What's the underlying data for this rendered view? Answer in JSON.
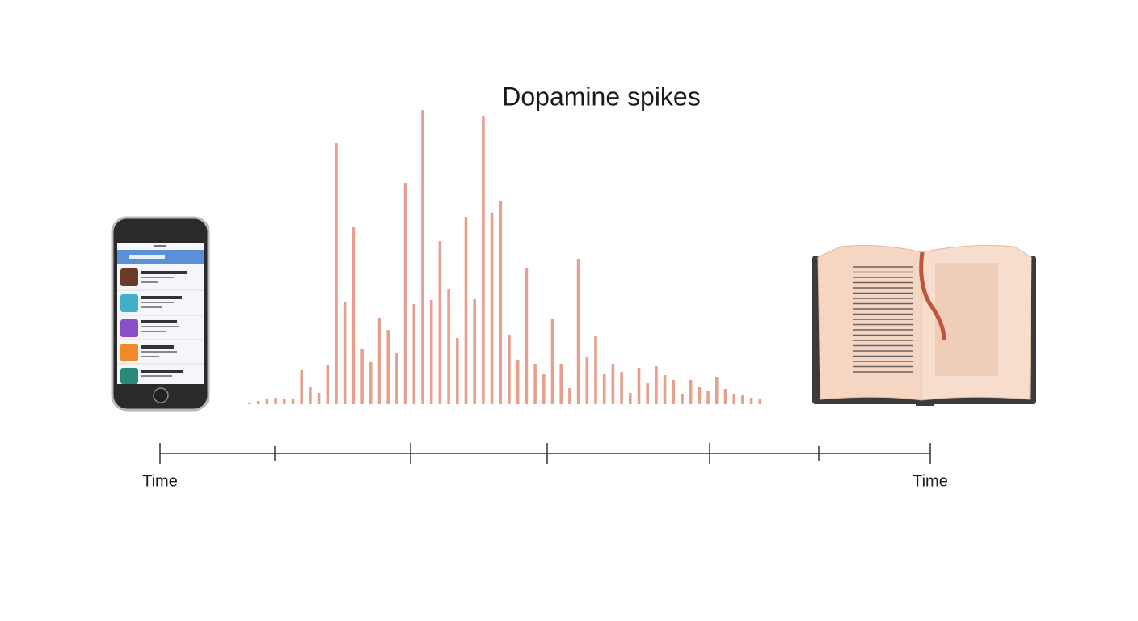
{
  "chart_data": {
    "type": "bar",
    "title": "Dopamine spikes",
    "values": [
      2,
      4,
      7,
      8,
      7,
      7,
      43,
      22,
      14,
      48,
      323,
      126,
      219,
      68,
      52,
      107,
      92,
      63,
      274,
      124,
      364,
      129,
      202,
      142,
      82,
      232,
      130,
      356,
      237,
      251,
      86,
      55,
      168,
      50,
      37,
      106,
      50,
      20,
      180,
      59,
      84,
      38,
      50,
      40,
      14,
      45,
      26,
      47,
      36,
      30,
      13,
      30,
      22,
      16,
      34,
      19,
      13,
      11,
      8,
      6
    ],
    "color": "#e8a08e",
    "ylim": [
      0,
      364
    ],
    "grid": false,
    "x_axis_labels": [
      "Time",
      "Time"
    ]
  }
}
